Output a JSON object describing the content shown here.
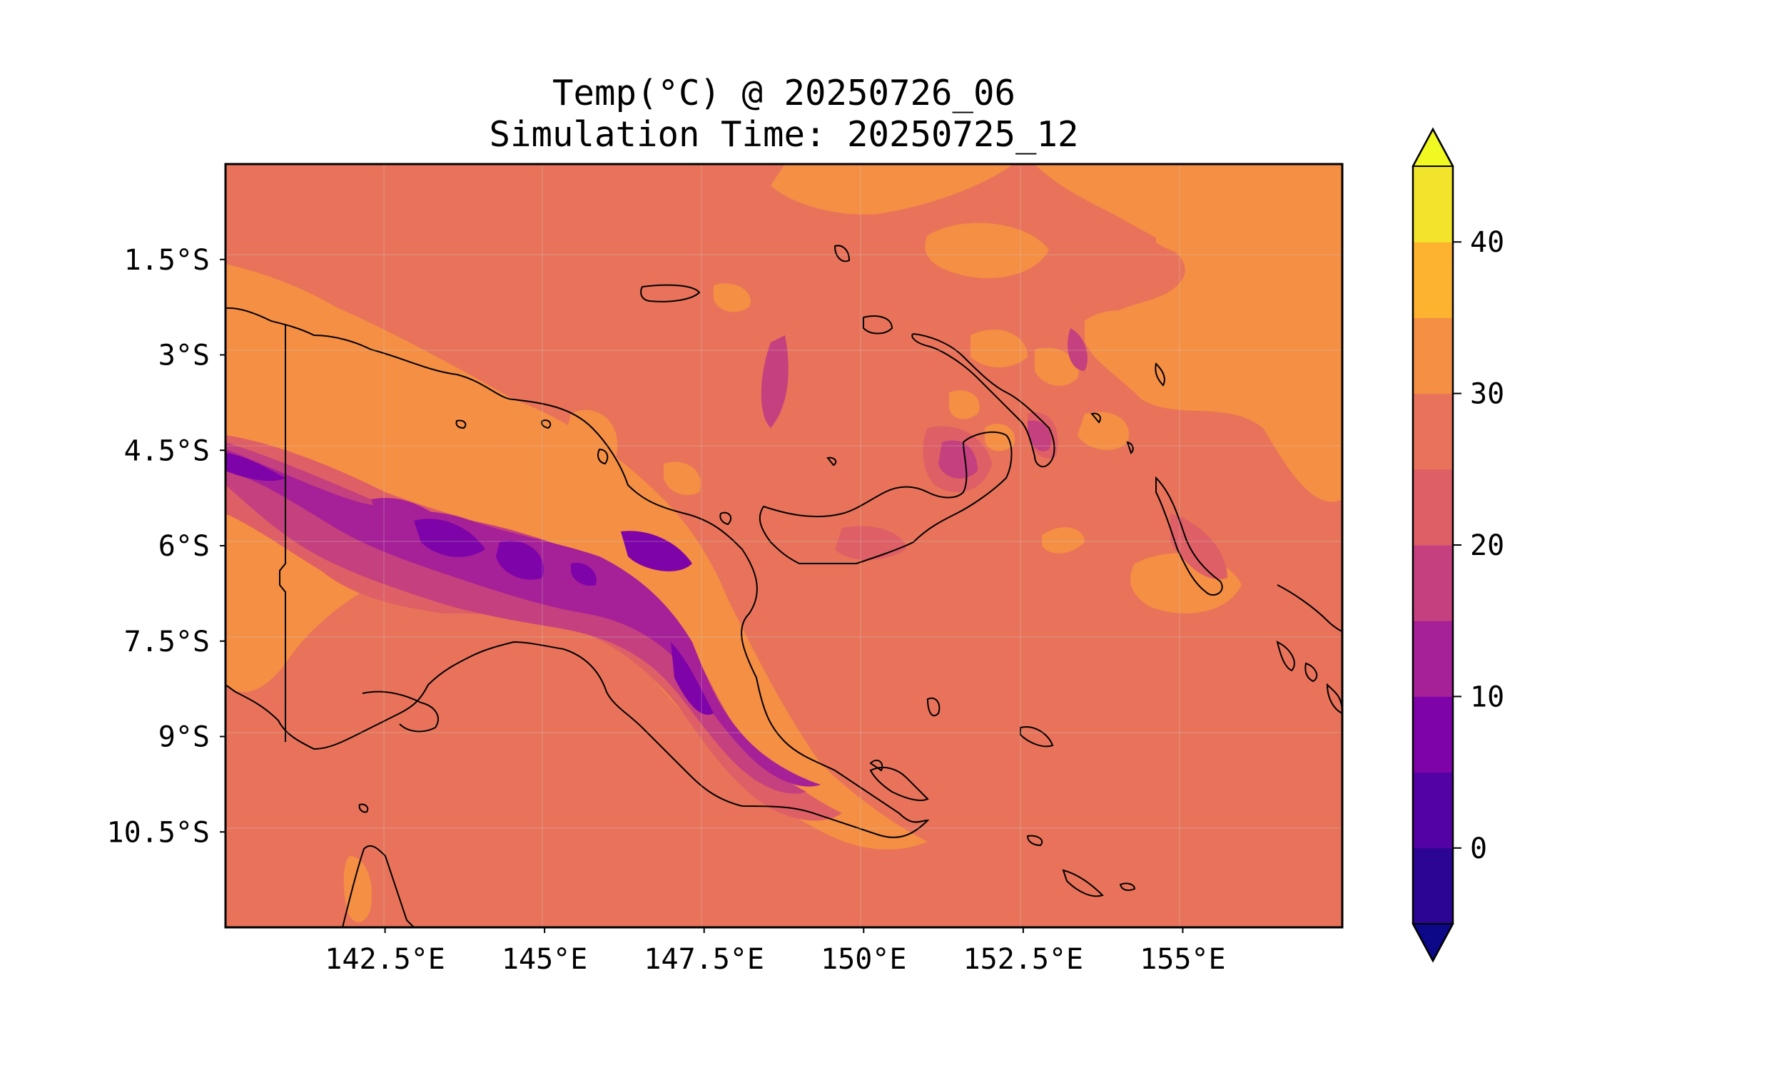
{
  "title": {
    "line1": "Temp(°C) @ 20250726_06",
    "line2": "Simulation Time: 20250725_12"
  },
  "map": {
    "variable": "Temp(°C)",
    "valid_time": "20250726_06",
    "simulation_time": "20250725_12",
    "lon_range": [
      140.0,
      157.5
    ],
    "lat_range": [
      -12.0,
      0.0
    ],
    "lon_ticks": [
      "142.5°E",
      "145°E",
      "147.5°E",
      "150°E",
      "152.5°E",
      "155°E"
    ],
    "lat_ticks": [
      "1.5°S",
      "3°S",
      "4.5°S",
      "6°S",
      "7.5°S",
      "9°S",
      "10.5°S"
    ],
    "background_color": "#e8735a"
  },
  "colorbar": {
    "levels": [
      -5,
      0,
      5,
      10,
      15,
      20,
      25,
      30,
      35,
      40,
      45
    ],
    "colors": [
      "#2c0594",
      "#5302a3",
      "#7e03a8",
      "#a62098",
      "#c5407e",
      "#de5f65",
      "#e8735a",
      "#f48f44",
      "#fdb32f",
      "#f2e42b"
    ],
    "under_color": "#0d0887",
    "over_color": "#f0f921",
    "tick_values": [
      0,
      10,
      20,
      30,
      40
    ],
    "tick_labels": [
      "0",
      "10",
      "20",
      "30",
      "40"
    ],
    "extend": "both"
  }
}
